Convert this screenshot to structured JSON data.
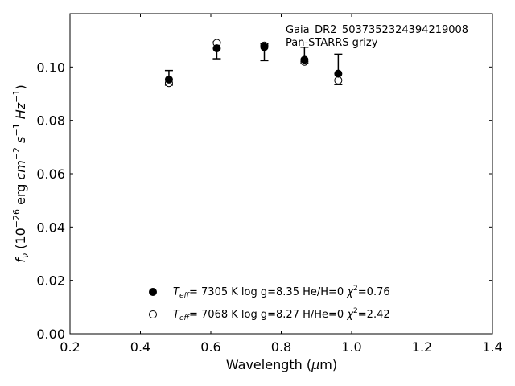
{
  "chart_data": {
    "type": "scatter",
    "annotation_lines": [
      "Gaia_DR2_5037352324394219008",
      "Pan-STARRS grizy"
    ],
    "xlabel": "Wavelength (μm)",
    "ylabel": "f_ν (10^-26 erg cm^-2 s^-1 Hz^-1)",
    "xlim": [
      0.2,
      1.4
    ],
    "ylim": [
      0.0,
      0.12
    ],
    "xticks": [
      "0.2",
      "0.4",
      "0.6",
      "0.8",
      "1.0",
      "1.2",
      "1.4"
    ],
    "yticks": [
      "0.00",
      "0.02",
      "0.04",
      "0.06",
      "0.08",
      "0.10"
    ],
    "grid": false,
    "legend_position": "bottom-center",
    "observed": {
      "x": [
        0.481,
        0.617,
        0.752,
        0.866,
        0.962
      ],
      "y": [
        0.094,
        0.109,
        0.108,
        0.102,
        0.095
      ],
      "err_low": [
        0.0932,
        0.1031,
        0.1024,
        0.1013,
        0.0934
      ],
      "err_high": [
        0.0987,
        0.1094,
        0.1087,
        0.1074,
        0.1048
      ]
    },
    "series": [
      {
        "marker": "filled",
        "x": [
          0.481,
          0.617,
          0.752,
          0.866,
          0.962
        ],
        "y": [
          0.0953,
          0.107,
          0.1075,
          0.1027,
          0.0975
        ],
        "legend_parts": {
          "teff": "7305 K",
          "logg": "log g=8.35",
          "comp": "He/H=0",
          "chi2": "=0.76"
        }
      },
      {
        "marker": "open",
        "x": [
          0.481,
          0.617,
          0.752,
          0.866,
          0.962
        ],
        "y": [
          0.094,
          0.109,
          0.108,
          0.102,
          0.095
        ],
        "legend_parts": {
          "teff": "7068 K",
          "logg": "log g=8.27",
          "comp": "H/He=0",
          "chi2": "=2.42"
        }
      }
    ]
  }
}
